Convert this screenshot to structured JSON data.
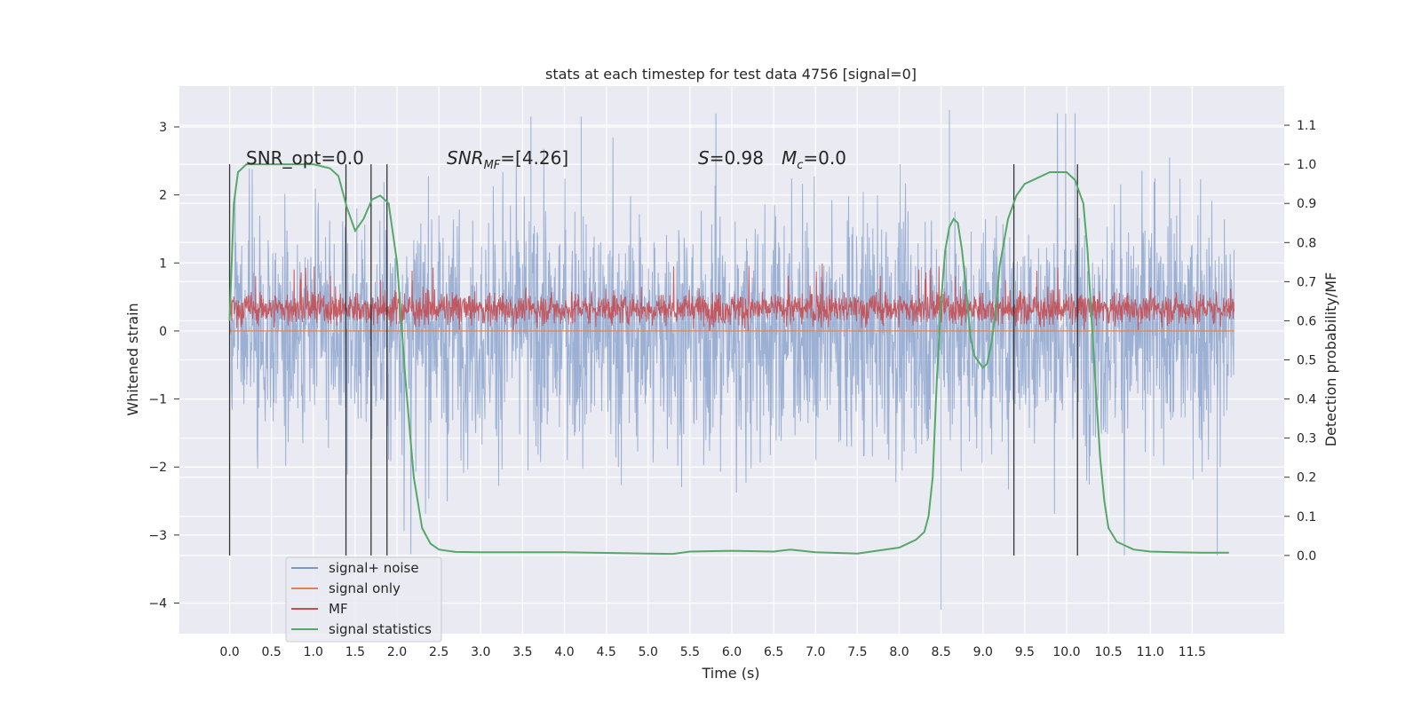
{
  "chart_data": {
    "type": "line",
    "title": "stats at each timestep for test data 4756 [signal=0]",
    "xlabel": "Time (s)",
    "ylabel_left": "Whitened strain",
    "ylabel_right": "Detection probability/MF",
    "xlim": [
      -0.6,
      12.6
    ],
    "ylim_left": [
      -4.45,
      3.6
    ],
    "ylim_right": [
      -0.2,
      1.2
    ],
    "x_ticks": [
      "0.0",
      "0.5",
      "1.0",
      "1.5",
      "2.0",
      "2.5",
      "3.0",
      "3.5",
      "4.0",
      "4.5",
      "5.0",
      "5.5",
      "6.0",
      "6.5",
      "7.0",
      "7.5",
      "8.0",
      "8.5",
      "9.0",
      "9.5",
      "10.0",
      "10.5",
      "11.0",
      "11.5"
    ],
    "y_ticks_left": [
      "3",
      "2",
      "1",
      "0",
      "−1",
      "−2",
      "−3",
      "−4"
    ],
    "y_ticks_right": [
      "1.1",
      "1.0",
      "0.9",
      "0.8",
      "0.7",
      "0.6",
      "0.5",
      "0.4",
      "0.3",
      "0.2",
      "0.1",
      "0.0"
    ],
    "annotations": {
      "snr_opt": "SNR_opt=0.0",
      "snr_mf": "[4.26]",
      "s_value": "=0.98",
      "mc_value": "=0.0"
    },
    "series": [
      {
        "name": "signal+ noise",
        "color": "#7b97c8",
        "description_x_range": [
          0.0,
          12.0
        ],
        "typical_range": [
          -2.0,
          2.4
        ],
        "extremes": [
          -4.1,
          3.25
        ],
        "spikes": [
          [
            8.5,
            -4.1
          ],
          [
            8.6,
            3.25
          ],
          [
            10.1,
            3.2
          ],
          [
            3.6,
            3.15
          ],
          [
            4.2,
            3.15
          ],
          [
            11.8,
            -3.3
          ]
        ]
      },
      {
        "name": "signal only",
        "color": "#dd8452",
        "x": [
          0.0,
          12.0
        ],
        "y": [
          0.0,
          0.0
        ]
      },
      {
        "name": "MF",
        "color": "#c44e52",
        "axis": "left",
        "typical_range": [
          0.05,
          0.7
        ],
        "extremes": [
          0.0,
          1.0
        ]
      },
      {
        "name": "signal statistics",
        "color": "#55a868",
        "axis": "right",
        "x": [
          0.0,
          0.05,
          0.1,
          0.15,
          0.2,
          0.3,
          0.5,
          0.8,
          1.0,
          1.2,
          1.3,
          1.35,
          1.4,
          1.5,
          1.6,
          1.7,
          1.8,
          1.9,
          2.0,
          2.1,
          2.2,
          2.3,
          2.4,
          2.5,
          2.7,
          3.0,
          4.0,
          5.0,
          5.3,
          5.5,
          6.0,
          6.5,
          6.7,
          7.0,
          7.5,
          8.0,
          8.2,
          8.3,
          8.35,
          8.4,
          8.45,
          8.5,
          8.55,
          8.6,
          8.65,
          8.7,
          8.75,
          8.8,
          8.85,
          8.9,
          9.0,
          9.05,
          9.1,
          9.15,
          9.2,
          9.3,
          9.4,
          9.5,
          9.6,
          9.8,
          10.0,
          10.1,
          10.2,
          10.25,
          10.3,
          10.35,
          10.4,
          10.45,
          10.5,
          10.6,
          10.8,
          11.0,
          11.3,
          11.6,
          11.94
        ],
        "y": [
          0.6,
          0.9,
          0.98,
          0.99,
          1.0,
          1.0,
          1.0,
          1.0,
          1.0,
          0.99,
          0.97,
          0.93,
          0.89,
          0.83,
          0.86,
          0.91,
          0.92,
          0.9,
          0.75,
          0.45,
          0.2,
          0.07,
          0.03,
          0.015,
          0.009,
          0.008,
          0.008,
          0.005,
          0.004,
          0.01,
          0.012,
          0.01,
          0.015,
          0.008,
          0.005,
          0.02,
          0.04,
          0.06,
          0.1,
          0.2,
          0.45,
          0.65,
          0.78,
          0.84,
          0.86,
          0.85,
          0.78,
          0.68,
          0.56,
          0.51,
          0.48,
          0.49,
          0.54,
          0.62,
          0.74,
          0.86,
          0.92,
          0.95,
          0.96,
          0.98,
          0.98,
          0.96,
          0.9,
          0.78,
          0.6,
          0.42,
          0.25,
          0.14,
          0.07,
          0.035,
          0.015,
          0.01,
          0.008,
          0.007,
          0.007
        ]
      }
    ],
    "vertical_markers": {
      "color": "#333333",
      "axis": "right",
      "lines": [
        {
          "x": 0.0,
          "y_from": 0.0,
          "y_to": 1.0
        },
        {
          "x": 1.39,
          "y_from": 0.0,
          "y_to": 1.0
        },
        {
          "x": 1.69,
          "y_from": 0.0,
          "y_to": 1.0
        },
        {
          "x": 1.88,
          "y_from": 0.0,
          "y_to": 1.0
        },
        {
          "x": 9.37,
          "y_from": 0.0,
          "y_to": 1.0
        },
        {
          "x": 10.13,
          "y_from": 0.0,
          "y_to": 1.0
        }
      ]
    },
    "grid": true,
    "legend_position": "lower-left"
  }
}
